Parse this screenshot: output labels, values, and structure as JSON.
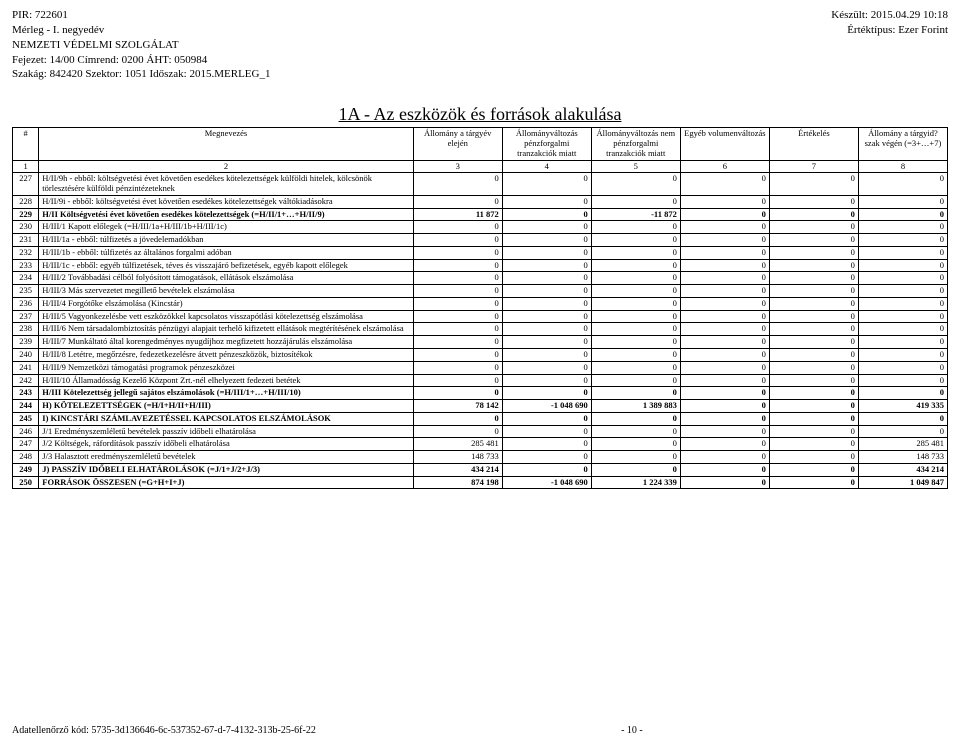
{
  "header": {
    "pir": "PIR: 722601",
    "merleg": "Mérleg - I. negyedév",
    "org": "NEMZETI VÉDELMI SZOLGÁLAT",
    "fejezet": "Fejezet: 14/00 Címrend: 0200 ÁHT: 050984",
    "szakag": "Szakág: 842420 Szektor: 1051 Időszak: 2015.MERLEG_1",
    "keszult": "Készült: 2015.04.29 10:18",
    "ertektipus": "Értéktípus: Ezer Forint"
  },
  "title": "1A - Az eszközök és források alakulása",
  "columns": {
    "c1": "#",
    "c2": "Megnevezés",
    "c3": "Állomány a tárgyév elején",
    "c4": "Állományváltozás pénzforgalmi tranzakciók miatt",
    "c5": "Állományváltozás nem pénzforgalmi tranzakciók miatt",
    "c6": "Egyéb volumenváltozás",
    "c7": "Értékelés",
    "c8": "Állomány a tárgyid?szak végén (=3+…+7)"
  },
  "index": {
    "i1": "1",
    "i2": "2",
    "i3": "3",
    "i4": "4",
    "i5": "5",
    "i6": "6",
    "i7": "7",
    "i8": "8"
  },
  "rows": [
    {
      "n": "227",
      "name": "H/II/9h - ebből: költségvetési évet követően esedékes kötelezettségek külföldi hitelek, kölcsönök törlesztésére külföldi pénzintézeteknek",
      "v": [
        "0",
        "0",
        "0",
        "0",
        "0",
        "0"
      ],
      "bold": false
    },
    {
      "n": "228",
      "name": "H/II/9i - ebből: költségvetési évet követően esedékes kötelezettségek váltókiadásokra",
      "v": [
        "0",
        "0",
        "0",
        "0",
        "0",
        "0"
      ],
      "bold": false
    },
    {
      "n": "229",
      "name": "H/II Költségvetési évet követően esedékes kötelezettségek (=H/II/1+…+H/II/9)",
      "v": [
        "11 872",
        "0",
        "-11 872",
        "0",
        "0",
        "0"
      ],
      "bold": true
    },
    {
      "n": "230",
      "name": "H/III/1 Kapott előlegek (=H/III/1a+H/III/1b+H/III/1c)",
      "v": [
        "0",
        "0",
        "0",
        "0",
        "0",
        "0"
      ],
      "bold": false
    },
    {
      "n": "231",
      "name": "H/III/1a - ebből: túlfizetés a jövedelemadókban",
      "v": [
        "0",
        "0",
        "0",
        "0",
        "0",
        "0"
      ],
      "bold": false
    },
    {
      "n": "232",
      "name": "H/III/1b - ebből: túlfizetés az általános forgalmi adóban",
      "v": [
        "0",
        "0",
        "0",
        "0",
        "0",
        "0"
      ],
      "bold": false
    },
    {
      "n": "233",
      "name": "H/III/1c - ebből: egyéb túlfizetések, téves és visszajáró befizetések, egyéb kapott előlegek",
      "v": [
        "0",
        "0",
        "0",
        "0",
        "0",
        "0"
      ],
      "bold": false
    },
    {
      "n": "234",
      "name": "H/III/2 Továbbadási célból folyósított támogatások, ellátások elszámolása",
      "v": [
        "0",
        "0",
        "0",
        "0",
        "0",
        "0"
      ],
      "bold": false
    },
    {
      "n": "235",
      "name": "H/III/3 Más szervezetet megillető bevételek elszámolása",
      "v": [
        "0",
        "0",
        "0",
        "0",
        "0",
        "0"
      ],
      "bold": false
    },
    {
      "n": "236",
      "name": "H/III/4 Forgótőke elszámolása (Kincstár)",
      "v": [
        "0",
        "0",
        "0",
        "0",
        "0",
        "0"
      ],
      "bold": false
    },
    {
      "n": "237",
      "name": "H/III/5 Vagyonkezelésbe vett eszközökkel kapcsolatos visszapótlási kötelezettség elszámolása",
      "v": [
        "0",
        "0",
        "0",
        "0",
        "0",
        "0"
      ],
      "bold": false
    },
    {
      "n": "238",
      "name": "H/III/6 Nem társadalombiztosítás pénzügyi alapjait terhelő kifizetett ellátások megtérítésének elszámolása",
      "v": [
        "0",
        "0",
        "0",
        "0",
        "0",
        "0"
      ],
      "bold": false
    },
    {
      "n": "239",
      "name": "H/III/7 Munkáltató által korengedményes nyugdíjhoz megfizetett hozzájárulás elszámolása",
      "v": [
        "0",
        "0",
        "0",
        "0",
        "0",
        "0"
      ],
      "bold": false
    },
    {
      "n": "240",
      "name": "H/III/8 Letétre, megőrzésre, fedezetkezelésre átvett pénzeszközök, biztosítékok",
      "v": [
        "0",
        "0",
        "0",
        "0",
        "0",
        "0"
      ],
      "bold": false
    },
    {
      "n": "241",
      "name": "H/III/9 Nemzetközi támogatási programok pénzeszközei",
      "v": [
        "0",
        "0",
        "0",
        "0",
        "0",
        "0"
      ],
      "bold": false
    },
    {
      "n": "242",
      "name": "H/III/10 Államadósság Kezelő Központ Zrt.-nél elhelyezett fedezeti betétek",
      "v": [
        "0",
        "0",
        "0",
        "0",
        "0",
        "0"
      ],
      "bold": false
    },
    {
      "n": "243",
      "name": "H/III Kötelezettség jellegű sajátos elszámolások (=H/III/1+…+H/III/10)",
      "v": [
        "0",
        "0",
        "0",
        "0",
        "0",
        "0"
      ],
      "bold": true
    },
    {
      "n": "244",
      "name": "H) KÖTELEZETTSÉGEK (=H/I+H/II+H/III)",
      "v": [
        "78 142",
        "-1 048 690",
        "1 389 883",
        "0",
        "0",
        "419 335"
      ],
      "bold": true
    },
    {
      "n": "245",
      "name": "I) KINCSTÁRI SZÁMLAVEZETÉSSEL KAPCSOLATOS ELSZÁMOLÁSOK",
      "v": [
        "0",
        "0",
        "0",
        "0",
        "0",
        "0"
      ],
      "bold": true
    },
    {
      "n": "246",
      "name": "J/1 Eredményszemléletű bevételek passzív időbeli elhatárolása",
      "v": [
        "0",
        "0",
        "0",
        "0",
        "0",
        "0"
      ],
      "bold": false
    },
    {
      "n": "247",
      "name": "J/2 Költségek, ráfordítások passzív időbeli elhatárolása",
      "v": [
        "285 481",
        "0",
        "0",
        "0",
        "0",
        "285 481"
      ],
      "bold": false
    },
    {
      "n": "248",
      "name": "J/3 Halasztott eredményszemléletű bevételek",
      "v": [
        "148 733",
        "0",
        "0",
        "0",
        "0",
        "148 733"
      ],
      "bold": false
    },
    {
      "n": "249",
      "name": "J) PASSZÍV IDŐBELI ELHATÁROLÁSOK (=J/1+J/2+J/3)",
      "v": [
        "434 214",
        "0",
        "0",
        "0",
        "0",
        "434 214"
      ],
      "bold": true
    },
    {
      "n": "250",
      "name": "FORRÁSOK ÖSSZESEN (=G+H+I+J)",
      "v": [
        "874 198",
        "-1 048 690",
        "1 224 339",
        "0",
        "0",
        "1 049 847"
      ],
      "bold": true
    }
  ],
  "footer": {
    "left": "Adatellenőrző kód: 5735-3d136646-6c-537352-67-d-7-4132-313b-25-6f-22",
    "center": "- 10 -"
  }
}
